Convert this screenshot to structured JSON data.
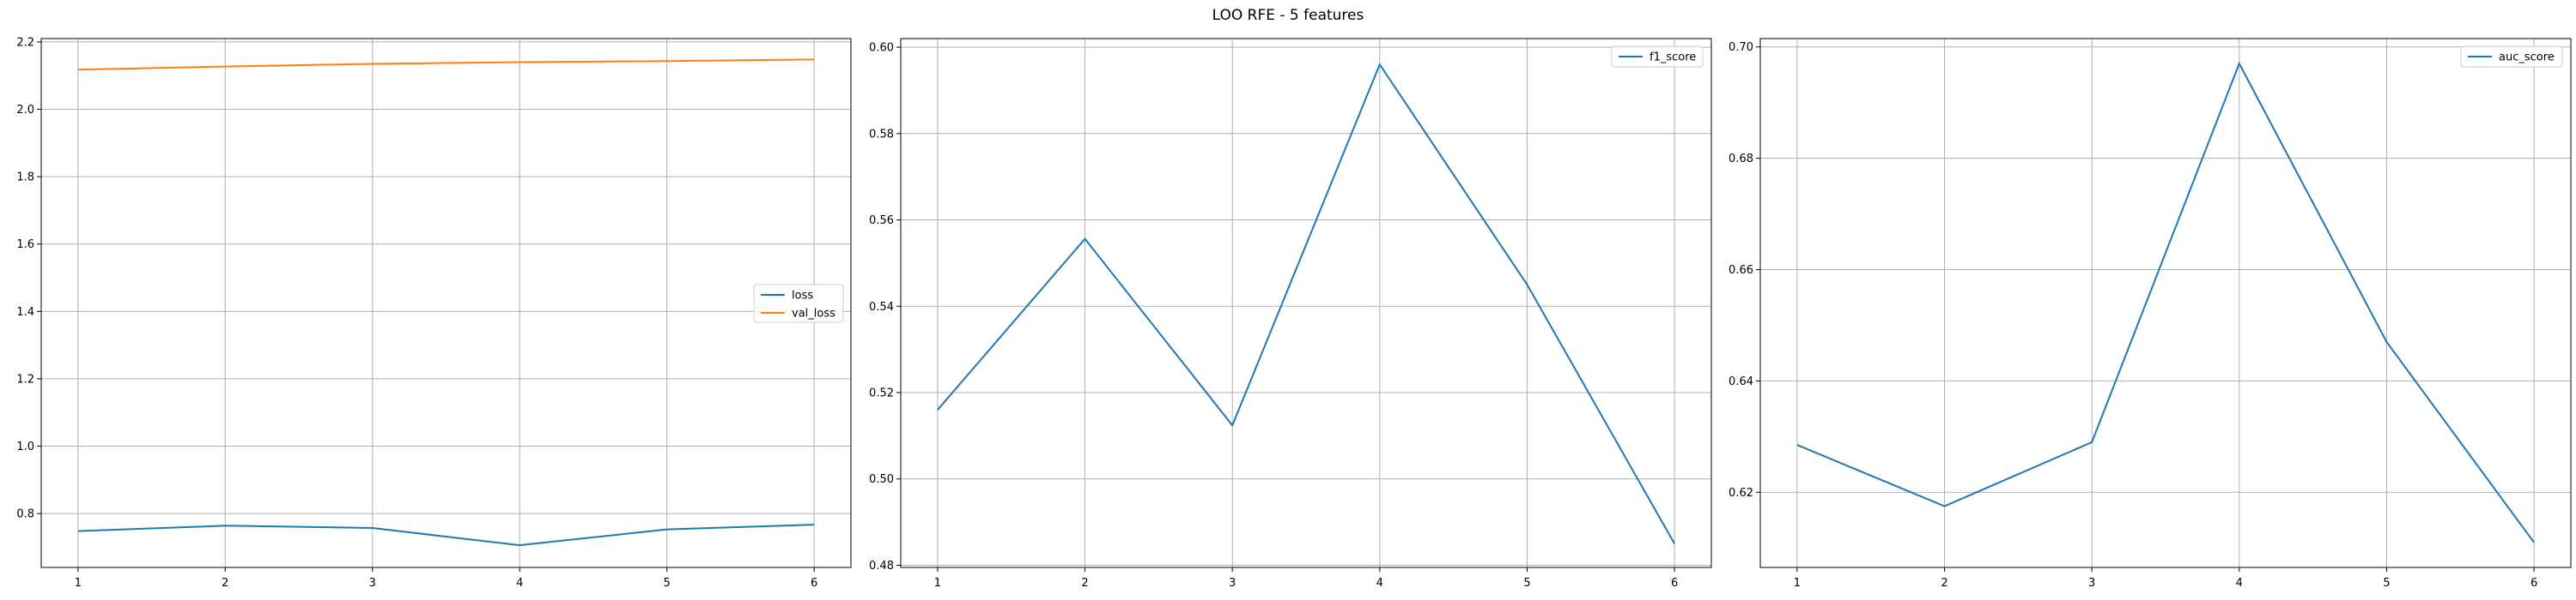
{
  "figure_title": "LOO RFE - 5 features",
  "chart_data": [
    {
      "type": "line",
      "x": [
        1,
        2,
        3,
        4,
        5,
        6
      ],
      "xticks": [
        1,
        2,
        3,
        4,
        5,
        6
      ],
      "xlim": [
        0.75,
        6.25
      ],
      "ylim": [
        0.64,
        2.21
      ],
      "yticks": [
        0.8,
        1.0,
        1.2,
        1.4,
        1.6,
        1.8,
        2.0,
        2.2
      ],
      "ytick_labels": [
        "0.8",
        "1.0",
        "1.2",
        "1.4",
        "1.6",
        "1.8",
        "2.0",
        "2.2"
      ],
      "grid": true,
      "legend_position": "center-right",
      "series": [
        {
          "name": "loss",
          "color": "#1f77b4",
          "values": [
            0.748,
            0.764,
            0.757,
            0.706,
            0.753,
            0.767
          ]
        },
        {
          "name": "val_loss",
          "color": "#ff7f0e",
          "values": [
            2.118,
            2.127,
            2.135,
            2.14,
            2.143,
            2.148
          ]
        }
      ]
    },
    {
      "type": "line",
      "x": [
        1,
        2,
        3,
        4,
        5,
        6
      ],
      "xticks": [
        1,
        2,
        3,
        4,
        5,
        6
      ],
      "xlim": [
        0.75,
        6.25
      ],
      "ylim": [
        0.4795,
        0.602
      ],
      "yticks": [
        0.48,
        0.5,
        0.52,
        0.54,
        0.56,
        0.58,
        0.6
      ],
      "ytick_labels": [
        "0.48",
        "0.50",
        "0.52",
        "0.54",
        "0.56",
        "0.58",
        "0.60"
      ],
      "grid": true,
      "legend_position": "top-right",
      "series": [
        {
          "name": "f1_score",
          "color": "#1f77b4",
          "values": [
            0.516,
            0.5556,
            0.5124,
            0.596,
            0.545,
            0.485
          ]
        }
      ]
    },
    {
      "type": "line",
      "x": [
        1,
        2,
        3,
        4,
        5,
        6
      ],
      "xticks": [
        1,
        2,
        3,
        4,
        5,
        6
      ],
      "xlim": [
        0.75,
        6.25
      ],
      "ylim": [
        0.6065,
        0.7015
      ],
      "yticks": [
        0.62,
        0.64,
        0.66,
        0.68,
        0.7
      ],
      "ytick_labels": [
        "0.62",
        "0.64",
        "0.66",
        "0.68",
        "0.70"
      ],
      "grid": true,
      "legend_position": "top-right",
      "series": [
        {
          "name": "auc_score",
          "color": "#1f77b4",
          "values": [
            0.6285,
            0.6175,
            0.629,
            0.697,
            0.647,
            0.611
          ]
        }
      ]
    }
  ]
}
